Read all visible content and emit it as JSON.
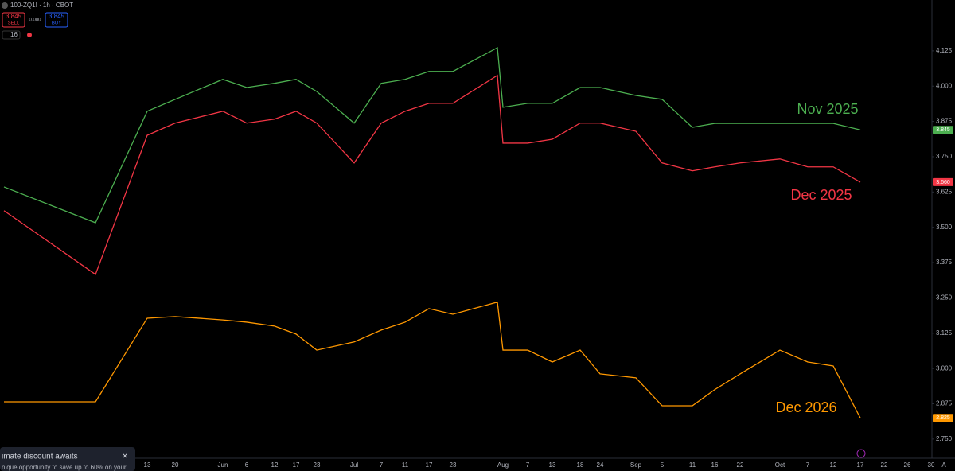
{
  "chart_data": {
    "type": "line",
    "categories": [
      null,
      null,
      "13",
      "20",
      "Jun",
      "6",
      "12",
      "17",
      "23",
      "Jul",
      "7",
      "11",
      "17",
      "23",
      null,
      "Aug",
      "7",
      "13",
      "18",
      "24",
      "Sep",
      "5",
      "11",
      "16",
      "22",
      "Oct",
      "7",
      "12",
      "17",
      "22",
      "26",
      "30"
    ],
    "series": [
      {
        "name": "Nov 2025",
        "color": "#4caf50",
        "last_label": "3.845",
        "values": [
          3.643,
          3.516,
          3.911,
          3.953,
          4.024,
          3.995,
          4.01,
          4.024,
          3.981,
          3.869,
          4.01,
          4.024,
          4.052,
          4.052,
          4.136,
          3.925,
          3.939,
          3.939,
          3.995,
          3.995,
          3.967,
          3.953,
          3.854,
          3.868,
          3.868,
          3.868,
          3.868,
          3.868,
          3.845,
          null,
          null,
          null
        ]
      },
      {
        "name": "Dec 2025",
        "color": "#f23645",
        "last_label": "3.660",
        "values": [
          3.559,
          3.333,
          3.826,
          3.869,
          3.911,
          3.869,
          3.883,
          3.911,
          3.869,
          3.728,
          3.869,
          3.911,
          3.939,
          3.939,
          4.038,
          3.798,
          3.798,
          3.812,
          3.869,
          3.869,
          3.84,
          3.728,
          3.7,
          3.714,
          3.728,
          3.742,
          3.714,
          3.714,
          3.66,
          null,
          null,
          null
        ]
      },
      {
        "name": "Dec 2026",
        "color": "#ff9800",
        "last_label": "2.825",
        "values": [
          2.882,
          2.882,
          3.178,
          3.184,
          3.172,
          3.164,
          3.15,
          3.122,
          3.065,
          3.094,
          3.136,
          3.164,
          3.212,
          3.192,
          3.235,
          3.065,
          3.065,
          3.023,
          3.065,
          2.981,
          2.967,
          2.868,
          2.868,
          2.925,
          2.981,
          3.065,
          3.023,
          3.009,
          2.825,
          null,
          null,
          null
        ]
      }
    ],
    "ylim": [
      2.682,
      4.305
    ],
    "yticks": [
      {
        "value": 2.75,
        "label": "2.750"
      },
      {
        "value": 2.875,
        "label": "2.875"
      },
      {
        "value": 3.0,
        "label": "3.000"
      },
      {
        "value": 3.125,
        "label": "3.125"
      },
      {
        "value": 3.25,
        "label": "3.250"
      },
      {
        "value": 3.375,
        "label": "3.375"
      },
      {
        "value": 3.5,
        "label": "3.500"
      },
      {
        "value": 3.625,
        "label": "3.625"
      },
      {
        "value": 3.75,
        "label": "3.750"
      },
      {
        "value": 3.875,
        "label": "3.875"
      },
      {
        "value": 4.0,
        "label": "4.000"
      },
      {
        "value": 4.125,
        "label": "4.125"
      }
    ],
    "grid": false
  },
  "ui": {
    "symbol": "100-ZQ1! · 1h · CBOT",
    "sell_price": "3.845",
    "sell": "SELL",
    "spread": "0.000",
    "buy_price": "3.845",
    "buy": "BUY",
    "count": "16",
    "promo_title": "imate discount awaits",
    "promo_text": "nique opportunity to save up to 60% on your",
    "close": "×",
    "auto": "A"
  }
}
